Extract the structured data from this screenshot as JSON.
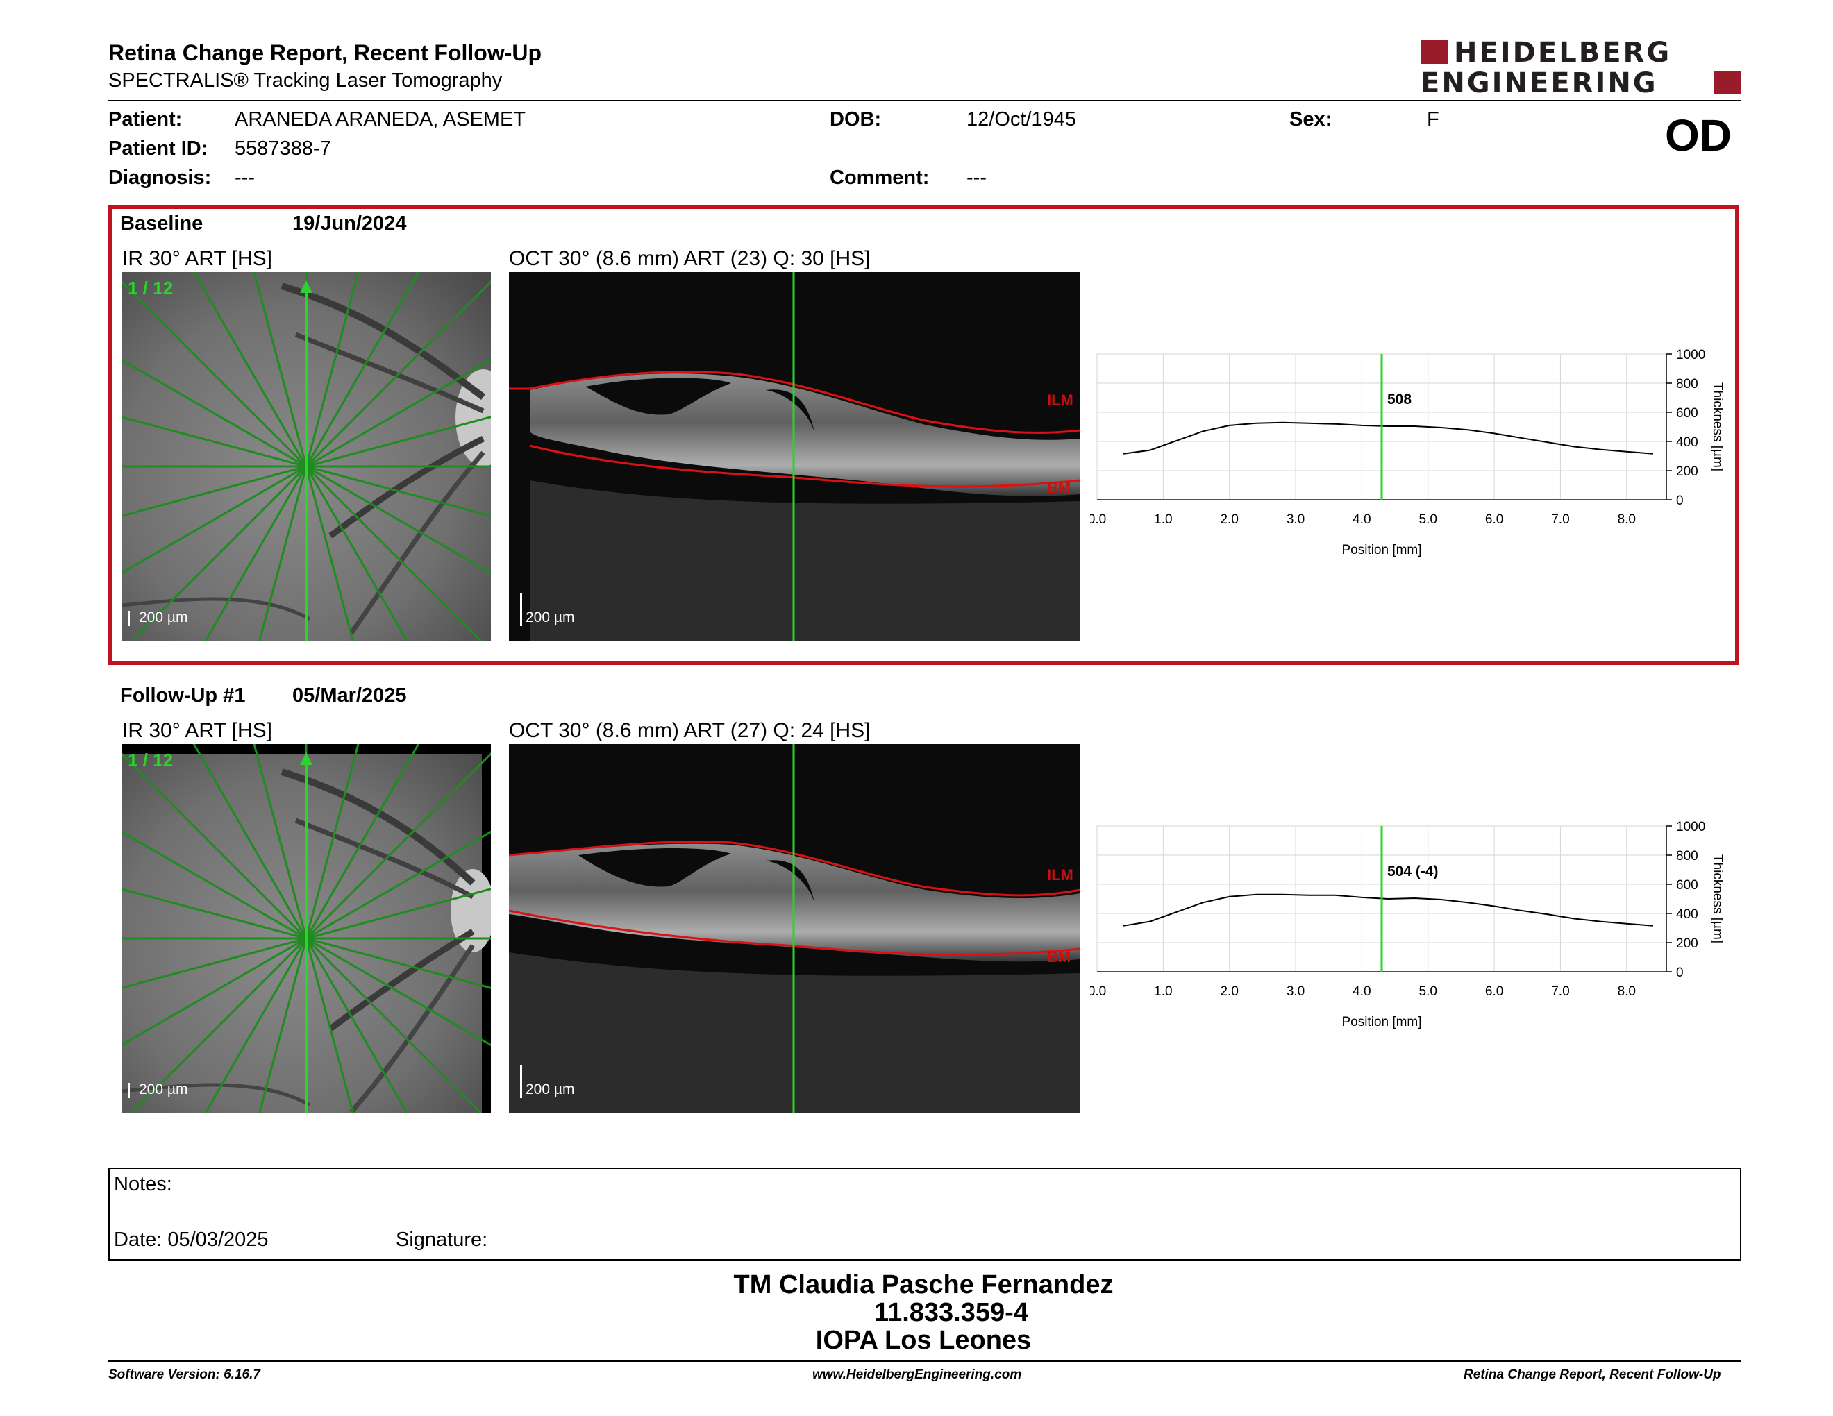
{
  "header": {
    "title": "Retina Change Report, Recent Follow-Up",
    "subtitle": "SPECTRALIS® Tracking Laser Tomography",
    "logo_line1": "HEIDELBERG",
    "logo_line2": "ENGINEERING",
    "brand_color": "#9a1c2b"
  },
  "patient": {
    "patient_label": "Patient:",
    "patient_name": "ARANEDA ARANEDA, ASEMET",
    "id_label": "Patient ID:",
    "patient_id": "5587388-7",
    "diagnosis_label": "Diagnosis:",
    "diagnosis": "---",
    "dob_label": "DOB:",
    "dob": "12/Oct/1945",
    "comment_label": "Comment:",
    "comment": "---",
    "sex_label": "Sex:",
    "sex": "F",
    "eye": "OD"
  },
  "baseline": {
    "label": "Baseline",
    "date": "19/Jun/2024",
    "ir_title": "IR 30° ART [HS]",
    "ir_counter": "1 / 12",
    "ir_scale": "200 µm",
    "oct_title": "OCT 30° (8.6 mm) ART (23) Q: 30 [HS]",
    "oct_scale": "200 µm",
    "ilm_label": "ILM",
    "bm_label": "BM",
    "highlight_color": "#c0121f"
  },
  "followup": {
    "label": "Follow-Up #1",
    "date": "05/Mar/2025",
    "ir_title": "IR 30° ART [HS]",
    "ir_counter": "1 / 12",
    "ir_scale": "200 µm",
    "oct_title": "OCT 30° (8.6 mm) ART (27) Q: 24 [HS]",
    "oct_scale": "200 µm",
    "ilm_label": "ILM",
    "bm_label": "BM"
  },
  "chart_data": [
    {
      "type": "line",
      "xlabel": "Position [mm]",
      "ylabel": "Thickness [µm]",
      "xlim": [
        0.0,
        8.6
      ],
      "ylim": [
        0,
        1000
      ],
      "xticks": [
        "0.0",
        "1.0",
        "2.0",
        "3.0",
        "4.0",
        "5.0",
        "6.0",
        "7.0",
        "8.0"
      ],
      "yticks": [
        "0",
        "200",
        "400",
        "600",
        "800",
        "1000"
      ],
      "grid": true,
      "marker_x": 4.3,
      "marker_label": "508",
      "x": [
        0.4,
        0.8,
        1.2,
        1.6,
        2.0,
        2.4,
        2.8,
        3.2,
        3.6,
        4.0,
        4.4,
        4.8,
        5.2,
        5.6,
        6.0,
        6.4,
        6.8,
        7.2,
        7.6,
        8.0,
        8.4
      ],
      "values": [
        315,
        340,
        405,
        470,
        510,
        525,
        530,
        525,
        520,
        510,
        505,
        505,
        495,
        480,
        455,
        425,
        395,
        365,
        345,
        330,
        315
      ]
    },
    {
      "type": "line",
      "xlabel": "Position [mm]",
      "ylabel": "Thickness [µm]",
      "xlim": [
        0.0,
        8.6
      ],
      "ylim": [
        0,
        1000
      ],
      "xticks": [
        "0.0",
        "1.0",
        "2.0",
        "3.0",
        "4.0",
        "5.0",
        "6.0",
        "7.0",
        "8.0"
      ],
      "yticks": [
        "0",
        "200",
        "400",
        "600",
        "800",
        "1000"
      ],
      "grid": true,
      "marker_x": 4.3,
      "marker_label": "504 (-4)",
      "x": [
        0.4,
        0.8,
        1.2,
        1.6,
        2.0,
        2.4,
        2.8,
        3.2,
        3.6,
        4.0,
        4.4,
        4.8,
        5.2,
        5.6,
        6.0,
        6.4,
        6.8,
        7.2,
        7.6,
        8.0,
        8.4
      ],
      "values": [
        315,
        345,
        410,
        475,
        515,
        530,
        530,
        525,
        525,
        510,
        500,
        505,
        495,
        475,
        450,
        420,
        395,
        365,
        345,
        330,
        315
      ]
    }
  ],
  "notes": {
    "notes_label": "Notes:",
    "date_label": "Date: 05/03/2025",
    "signature_label": "Signature:"
  },
  "signer": {
    "name": "TM Claudia Pasche Fernandez",
    "id": "11.833.359-4",
    "institution": "IOPA Los Leones"
  },
  "footer": {
    "software": "Software Version: 6.16.7",
    "website": "www.HeidelbergEngineering.com",
    "report_name": "Retina Change Report, Recent Follow-Up"
  }
}
